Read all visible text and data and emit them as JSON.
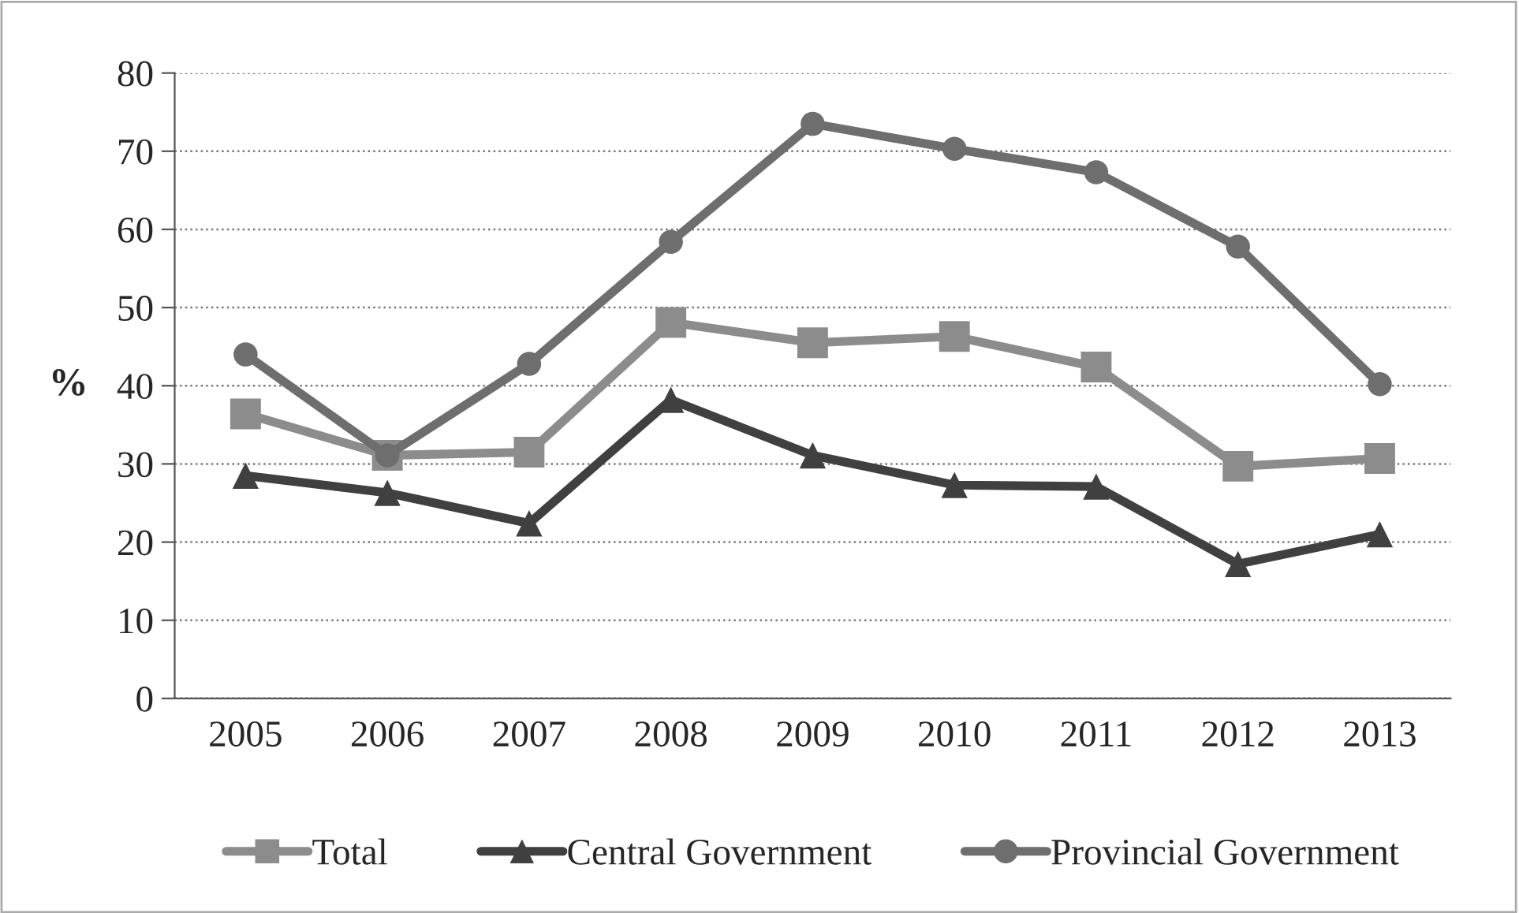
{
  "chart_data": {
    "type": "line",
    "ylabel": "%",
    "categories": [
      "2005",
      "2006",
      "2007",
      "2008",
      "2009",
      "2010",
      "2011",
      "2012",
      "2013"
    ],
    "series": [
      {
        "name": "Total",
        "color": "#8c8c8c",
        "marker": "square",
        "values": [
          36.4,
          31.1,
          31.5,
          48.1,
          45.5,
          46.3,
          42.4,
          29.7,
          30.7
        ]
      },
      {
        "name": "Central Government",
        "color": "#404040",
        "marker": "triangle",
        "values": [
          28.5,
          26.3,
          22.4,
          38.2,
          31.1,
          27.3,
          27.1,
          17.2,
          21.0
        ]
      },
      {
        "name": "Provincial Government",
        "color": "#6e6e6e",
        "marker": "circle",
        "values": [
          44.0,
          31.1,
          42.8,
          58.4,
          73.5,
          70.3,
          67.3,
          57.8,
          40.2
        ]
      }
    ],
    "ylim": [
      0,
      80
    ],
    "yticks": [
      0,
      10,
      20,
      30,
      40,
      50,
      60,
      70,
      80
    ],
    "grid": "y",
    "legend": "bottom",
    "line_style": "solid"
  }
}
